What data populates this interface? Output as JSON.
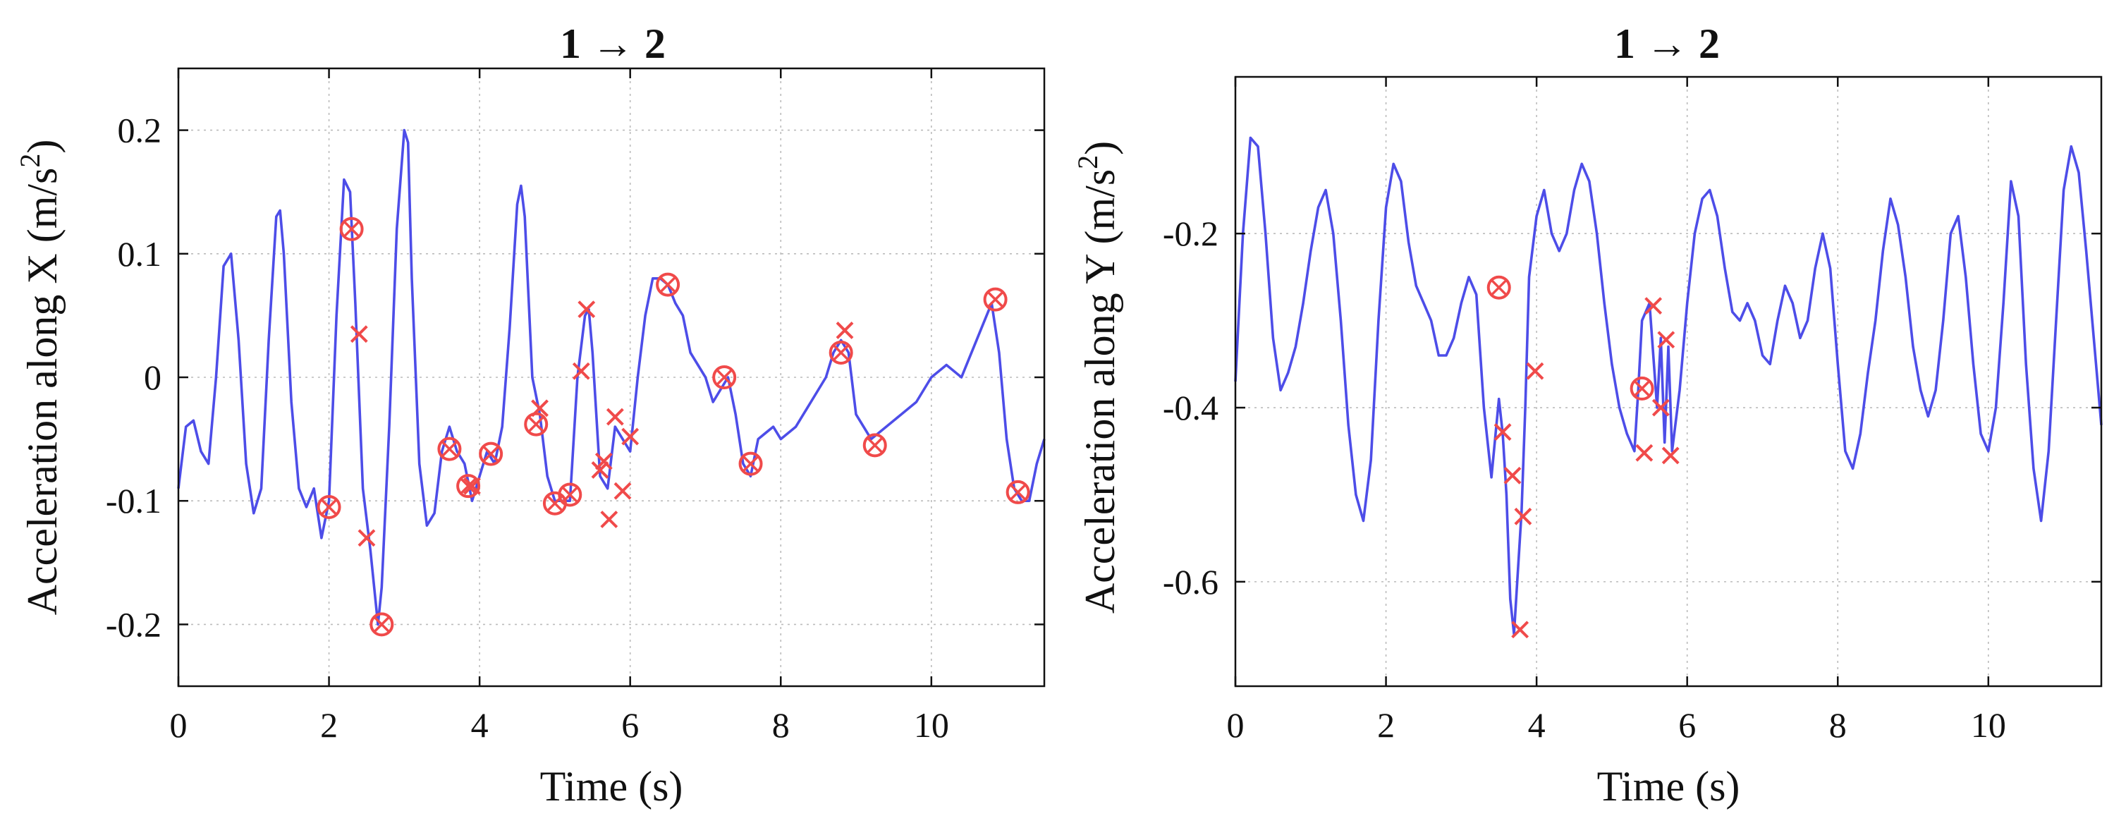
{
  "colors": {
    "line": "#4d4de8",
    "marker": "#f04a4a"
  },
  "chart_data": [
    {
      "type": "line",
      "title": "1 → 2",
      "xlabel": "Time (s)",
      "ylabel": "Acceleration along X (m/s",
      "ylabel_sup": "2",
      "ylabel_close": ")",
      "xlim": [
        0,
        11.5
      ],
      "ylim": [
        -0.25,
        0.25
      ],
      "xticks": [
        0,
        2,
        4,
        6,
        8,
        10
      ],
      "xtick_labels": [
        "0",
        "2",
        "4",
        "6",
        "8",
        "10"
      ],
      "yticks": [
        -0.2,
        -0.1,
        0,
        0.1,
        0.2
      ],
      "ytick_labels": [
        "-0.2",
        "-0.1",
        "0",
        "0.1",
        "0.2"
      ],
      "grid": true,
      "series": [
        {
          "x": [
            0,
            0.1,
            0.2,
            0.3,
            0.4,
            0.5,
            0.6,
            0.7,
            0.8,
            0.9,
            1.0,
            1.1,
            1.2,
            1.3,
            1.35,
            1.4,
            1.5,
            1.6,
            1.7,
            1.8,
            1.9,
            2.0,
            2.1,
            2.2,
            2.28,
            2.35,
            2.45,
            2.55,
            2.65,
            2.7,
            2.8,
            2.9,
            3.0,
            3.05,
            3.1,
            3.2,
            3.3,
            3.4,
            3.5,
            3.6,
            3.7,
            3.8,
            3.9,
            4.0,
            4.1,
            4.2,
            4.3,
            4.4,
            4.5,
            4.55,
            4.6,
            4.7,
            4.8,
            4.9,
            5.0,
            5.1,
            5.2,
            5.3,
            5.4,
            5.45,
            5.5,
            5.6,
            5.7,
            5.8,
            5.9,
            6.0,
            6.1,
            6.2,
            6.3,
            6.4,
            6.5,
            6.6,
            6.7,
            6.8,
            6.9,
            7.0,
            7.1,
            7.2,
            7.3,
            7.4,
            7.5,
            7.6,
            7.7,
            7.8,
            7.9,
            8.0,
            8.2,
            8.4,
            8.6,
            8.7,
            8.8,
            8.9,
            9.0,
            9.2,
            9.4,
            9.6,
            9.8,
            10.0,
            10.2,
            10.4,
            10.6,
            10.8,
            10.9,
            11.0,
            11.1,
            11.2,
            11.3,
            11.4,
            11.5
          ],
          "y": [
            -0.09,
            -0.04,
            -0.035,
            -0.06,
            -0.07,
            0.0,
            0.09,
            0.1,
            0.03,
            -0.07,
            -0.11,
            -0.09,
            0.03,
            0.13,
            0.135,
            0.1,
            -0.02,
            -0.09,
            -0.105,
            -0.09,
            -0.13,
            -0.1,
            0.05,
            0.16,
            0.15,
            0.06,
            -0.09,
            -0.14,
            -0.2,
            -0.17,
            -0.04,
            0.12,
            0.2,
            0.19,
            0.08,
            -0.07,
            -0.12,
            -0.11,
            -0.06,
            -0.04,
            -0.06,
            -0.07,
            -0.1,
            -0.08,
            -0.06,
            -0.07,
            -0.04,
            0.04,
            0.14,
            0.155,
            0.13,
            0.0,
            -0.03,
            -0.08,
            -0.1,
            -0.1,
            -0.1,
            0.0,
            0.05,
            0.055,
            0.02,
            -0.08,
            -0.09,
            -0.04,
            -0.05,
            -0.06,
            0.0,
            0.05,
            0.08,
            0.08,
            0.075,
            0.06,
            0.05,
            0.02,
            0.01,
            0.0,
            -0.02,
            -0.01,
            0.0,
            -0.03,
            -0.07,
            -0.08,
            -0.05,
            -0.045,
            -0.04,
            -0.05,
            -0.04,
            -0.02,
            0.0,
            0.02,
            0.03,
            0.02,
            -0.03,
            -0.05,
            -0.04,
            -0.03,
            -0.02,
            0.0,
            0.01,
            0.0,
            0.03,
            0.06,
            0.02,
            -0.05,
            -0.09,
            -0.1,
            -0.1,
            -0.07,
            -0.05
          ]
        }
      ],
      "circle_markers": [
        [
          2.0,
          -0.105
        ],
        [
          2.3,
          0.12
        ],
        [
          2.7,
          -0.2
        ],
        [
          3.6,
          -0.058
        ],
        [
          3.85,
          -0.088
        ],
        [
          4.15,
          -0.062
        ],
        [
          4.75,
          -0.038
        ],
        [
          5.0,
          -0.102
        ],
        [
          5.2,
          -0.095
        ],
        [
          6.5,
          0.075
        ],
        [
          7.25,
          0.0
        ],
        [
          7.6,
          -0.07
        ],
        [
          8.8,
          0.02
        ],
        [
          9.25,
          -0.055
        ],
        [
          10.85,
          0.063
        ],
        [
          11.15,
          -0.093
        ]
      ],
      "cross_markers": [
        [
          2.4,
          0.035
        ],
        [
          2.5,
          -0.13
        ],
        [
          3.9,
          -0.088
        ],
        [
          4.8,
          -0.025
        ],
        [
          5.35,
          0.005
        ],
        [
          5.42,
          0.055
        ],
        [
          5.6,
          -0.075
        ],
        [
          5.65,
          -0.068
        ],
        [
          5.72,
          -0.115
        ],
        [
          5.8,
          -0.032
        ],
        [
          5.9,
          -0.092
        ],
        [
          6.0,
          -0.048
        ],
        [
          8.85,
          0.038
        ]
      ]
    },
    {
      "type": "line",
      "title": "1 → 2",
      "xlabel": "Time (s)",
      "ylabel": "Acceleration along Y (m/s",
      "ylabel_sup": "2",
      "ylabel_close": ")",
      "xlim": [
        0,
        11.5
      ],
      "ylim": [
        -0.72,
        -0.02
      ],
      "xticks": [
        0,
        2,
        4,
        6,
        8,
        10
      ],
      "xtick_labels": [
        "0",
        "2",
        "4",
        "6",
        "8",
        "10"
      ],
      "yticks": [
        -0.6,
        -0.4,
        -0.2
      ],
      "ytick_labels": [
        "-0.6",
        "-0.4",
        "-0.2"
      ],
      "grid": true,
      "series": [
        {
          "x": [
            0,
            0.1,
            0.2,
            0.3,
            0.4,
            0.5,
            0.6,
            0.7,
            0.8,
            0.9,
            1.0,
            1.1,
            1.2,
            1.3,
            1.4,
            1.5,
            1.6,
            1.7,
            1.8,
            1.9,
            2.0,
            2.1,
            2.2,
            2.3,
            2.4,
            2.5,
            2.6,
            2.7,
            2.8,
            2.9,
            3.0,
            3.1,
            3.2,
            3.3,
            3.4,
            3.5,
            3.55,
            3.6,
            3.65,
            3.7,
            3.8,
            3.85,
            3.9,
            4.0,
            4.1,
            4.2,
            4.3,
            4.4,
            4.5,
            4.6,
            4.7,
            4.8,
            4.9,
            5.0,
            5.1,
            5.2,
            5.3,
            5.35,
            5.4,
            5.5,
            5.6,
            5.65,
            5.7,
            5.75,
            5.8,
            5.9,
            6.0,
            6.1,
            6.2,
            6.3,
            6.4,
            6.5,
            6.6,
            6.7,
            6.8,
            6.9,
            7.0,
            7.1,
            7.2,
            7.3,
            7.4,
            7.5,
            7.6,
            7.7,
            7.8,
            7.9,
            8.0,
            8.1,
            8.2,
            8.3,
            8.4,
            8.5,
            8.6,
            8.7,
            8.8,
            8.9,
            9.0,
            9.1,
            9.2,
            9.3,
            9.4,
            9.5,
            9.6,
            9.7,
            9.8,
            9.9,
            10.0,
            10.1,
            10.2,
            10.3,
            10.4,
            10.5,
            10.6,
            10.7,
            10.8,
            10.9,
            11.0,
            11.1,
            11.2,
            11.3,
            11.4,
            11.5
          ],
          "y": [
            -0.37,
            -0.2,
            -0.09,
            -0.1,
            -0.2,
            -0.32,
            -0.38,
            -0.36,
            -0.33,
            -0.28,
            -0.22,
            -0.17,
            -0.15,
            -0.2,
            -0.3,
            -0.42,
            -0.5,
            -0.53,
            -0.46,
            -0.3,
            -0.17,
            -0.12,
            -0.14,
            -0.21,
            -0.26,
            -0.28,
            -0.3,
            -0.34,
            -0.34,
            -0.32,
            -0.28,
            -0.25,
            -0.27,
            -0.4,
            -0.48,
            -0.39,
            -0.43,
            -0.5,
            -0.62,
            -0.66,
            -0.52,
            -0.4,
            -0.25,
            -0.18,
            -0.15,
            -0.2,
            -0.22,
            -0.2,
            -0.15,
            -0.12,
            -0.14,
            -0.2,
            -0.28,
            -0.35,
            -0.4,
            -0.43,
            -0.45,
            -0.38,
            -0.3,
            -0.28,
            -0.4,
            -0.32,
            -0.44,
            -0.33,
            -0.45,
            -0.38,
            -0.28,
            -0.2,
            -0.16,
            -0.15,
            -0.18,
            -0.24,
            -0.29,
            -0.3,
            -0.28,
            -0.3,
            -0.34,
            -0.35,
            -0.3,
            -0.26,
            -0.28,
            -0.32,
            -0.3,
            -0.24,
            -0.2,
            -0.24,
            -0.35,
            -0.45,
            -0.47,
            -0.43,
            -0.36,
            -0.3,
            -0.22,
            -0.16,
            -0.19,
            -0.25,
            -0.33,
            -0.38,
            -0.41,
            -0.38,
            -0.3,
            -0.2,
            -0.18,
            -0.25,
            -0.35,
            -0.43,
            -0.45,
            -0.4,
            -0.28,
            -0.14,
            -0.18,
            -0.35,
            -0.47,
            -0.53,
            -0.45,
            -0.3,
            -0.15,
            -0.1,
            -0.13,
            -0.22,
            -0.32,
            -0.42
          ]
        }
      ],
      "circle_markers": [
        [
          3.5,
          -0.262
        ],
        [
          5.4,
          -0.378
        ]
      ],
      "cross_markers": [
        [
          3.55,
          -0.428
        ],
        [
          3.68,
          -0.478
        ],
        [
          3.78,
          -0.655
        ],
        [
          3.82,
          -0.525
        ],
        [
          3.98,
          -0.358
        ],
        [
          5.43,
          -0.452
        ],
        [
          5.55,
          -0.283
        ],
        [
          5.65,
          -0.4
        ],
        [
          5.72,
          -0.322
        ],
        [
          5.78,
          -0.455
        ]
      ]
    }
  ]
}
